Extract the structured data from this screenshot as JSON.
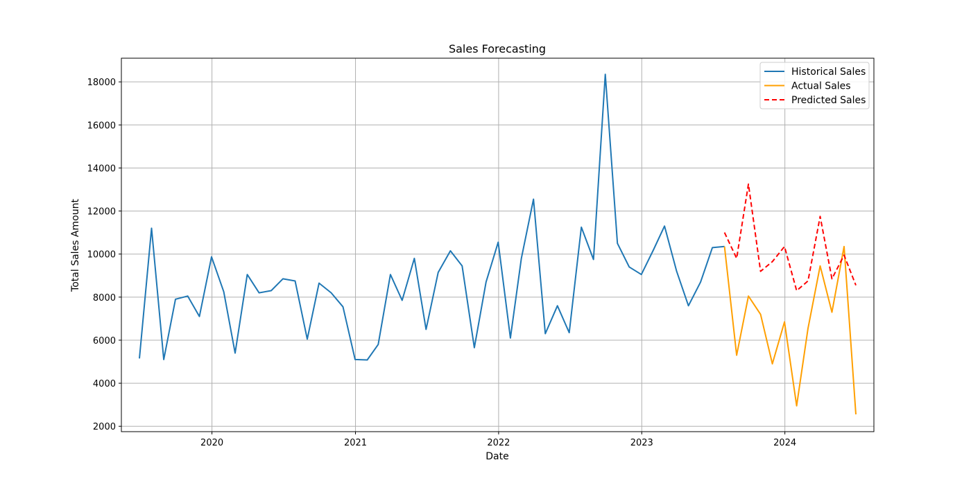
{
  "chart_data": {
    "type": "line",
    "title": "Sales Forecasting",
    "xlabel": "Date",
    "ylabel": "Total Sales Amount",
    "xlim": [
      "2019-05-15",
      "2024-08-15"
    ],
    "ylim": [
      1750,
      19100
    ],
    "x_ticks": [
      "2020-01-01",
      "2021-01-01",
      "2022-01-01",
      "2023-01-01",
      "2024-01-01"
    ],
    "x_tick_labels": [
      "2020",
      "2021",
      "2022",
      "2023",
      "2024"
    ],
    "y_ticks": [
      2000,
      4000,
      6000,
      8000,
      10000,
      12000,
      14000,
      16000,
      18000
    ],
    "grid": true,
    "legend_position": "top-right",
    "series": [
      {
        "name": "Historical Sales",
        "color": "#1f77b4",
        "style": "solid",
        "x": [
          "2019-06-30",
          "2019-07-31",
          "2019-08-31",
          "2019-09-30",
          "2019-10-31",
          "2019-11-30",
          "2019-12-31",
          "2020-01-31",
          "2020-02-29",
          "2020-03-31",
          "2020-04-30",
          "2020-05-31",
          "2020-06-30",
          "2020-07-31",
          "2020-08-31",
          "2020-09-30",
          "2020-10-31",
          "2020-11-30",
          "2020-12-31",
          "2021-01-31",
          "2021-02-28",
          "2021-03-31",
          "2021-04-30",
          "2021-05-31",
          "2021-06-30",
          "2021-07-31",
          "2021-08-31",
          "2021-09-30",
          "2021-10-31",
          "2021-11-30",
          "2021-12-31",
          "2022-01-31",
          "2022-02-28",
          "2022-03-31",
          "2022-04-30",
          "2022-05-31",
          "2022-06-30",
          "2022-07-31",
          "2022-08-31",
          "2022-09-30",
          "2022-10-31",
          "2022-11-30",
          "2022-12-31",
          "2023-01-31",
          "2023-02-28",
          "2023-03-31",
          "2023-04-30",
          "2023-05-31",
          "2023-06-30",
          "2023-07-31"
        ],
        "values": [
          5150,
          11200,
          5100,
          7900,
          8050,
          7100,
          9870,
          8250,
          5400,
          9050,
          8200,
          8300,
          8850,
          8750,
          6050,
          8650,
          8200,
          7550,
          5100,
          5080,
          5800,
          9050,
          7850,
          9800,
          6500,
          9150,
          10150,
          9450,
          5650,
          8700,
          10550,
          6100,
          9800,
          12550,
          6300,
          7600,
          6350,
          11250,
          9750,
          18350,
          10500,
          9400,
          9050,
          10200,
          11300,
          9200,
          7600,
          8700,
          10300,
          10350
        ]
      },
      {
        "name": "Actual Sales",
        "color": "#ff9f00",
        "style": "solid",
        "x": [
          "2023-07-31",
          "2023-08-31",
          "2023-09-30",
          "2023-10-31",
          "2023-11-30",
          "2023-12-31",
          "2024-01-31",
          "2024-02-29",
          "2024-03-31",
          "2024-04-30",
          "2024-05-31",
          "2024-06-30"
        ],
        "values": [
          10350,
          5300,
          8050,
          7200,
          4900,
          6850,
          2950,
          6550,
          9450,
          7300,
          10350,
          2550
        ]
      },
      {
        "name": "Predicted Sales",
        "color": "#ff0000",
        "style": "dashed",
        "x": [
          "2023-07-31",
          "2023-08-31",
          "2023-09-30",
          "2023-10-31",
          "2023-11-30",
          "2023-12-31",
          "2024-01-31",
          "2024-02-29",
          "2024-03-31",
          "2024-04-30",
          "2024-05-31",
          "2024-06-30"
        ],
        "values": [
          11000,
          9800,
          13250,
          9200,
          9650,
          10350,
          8300,
          8750,
          11750,
          8850,
          9950,
          8550
        ]
      }
    ]
  }
}
